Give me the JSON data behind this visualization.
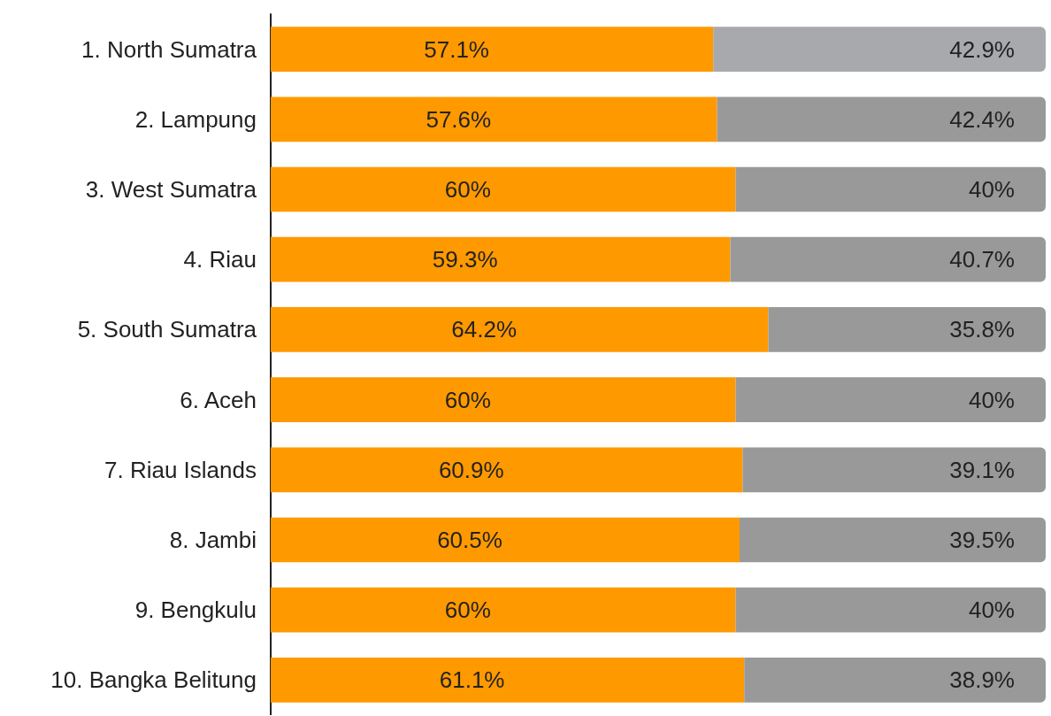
{
  "chart_data": {
    "type": "bar",
    "orientation": "horizontal",
    "stacked": true,
    "categories": [
      "1. North Sumatra",
      "2. Lampung",
      "3. West Sumatra",
      "4. Riau",
      "5. South Sumatra",
      "6. Aceh",
      "7. Riau Islands",
      "8. Jambi",
      "9. Bengkulu",
      "10. Bangka Belitung"
    ],
    "series": [
      {
        "color": "#ff9900",
        "values": [
          57.1,
          57.6,
          60,
          59.3,
          64.2,
          60,
          60.9,
          60.5,
          60,
          61.1
        ],
        "value_labels": [
          "57.1%",
          "57.6%",
          "60%",
          "59.3%",
          "64.2%",
          "60%",
          "60.9%",
          "60.5%",
          "60%",
          "61.1%"
        ]
      },
      {
        "colors": [
          "#a7a9ac",
          "#999999",
          "#999999",
          "#999999",
          "#999999",
          "#999999",
          "#999999",
          "#999999",
          "#999999",
          "#999999"
        ],
        "values": [
          42.9,
          42.4,
          40,
          40.7,
          35.8,
          40,
          39.1,
          39.5,
          40,
          38.9
        ],
        "value_labels": [
          "42.9%",
          "42.4%",
          "40%",
          "40.7%",
          "35.8%",
          "40%",
          "39.1%",
          "39.5%",
          "40%",
          "38.9%"
        ]
      }
    ],
    "xlim": [
      0,
      100
    ],
    "tick_labels": "y"
  }
}
